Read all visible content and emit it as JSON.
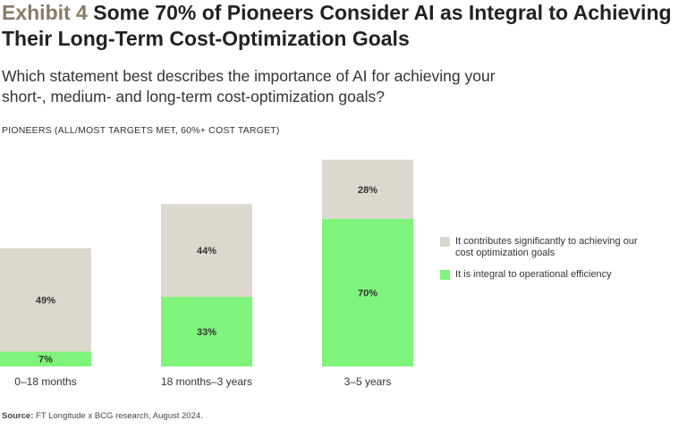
{
  "header": {
    "exhibit": "Exhibit 4",
    "title": "Some 70% of Pioneers Consider AI as Integral to Achieving Their Long-Term Cost-Optimization Goals",
    "question": "Which statement best describes the importance of AI for achieving your short-, medium- and long-term cost-optimization goals?",
    "group_label": "PIONEERS (ALL/MOST TARGETS MET, 60%+ COST TARGET)"
  },
  "legend": {
    "items": [
      {
        "label": "It contributes significantly to achieving our cost optimization goals",
        "color": "#ddd8cd"
      },
      {
        "label": "It is integral to operational efficiency",
        "color": "#7ff47a"
      }
    ]
  },
  "source": {
    "prefix": "Source:",
    "text": "FT Longitude x BCG research, August 2024."
  },
  "chart_data": {
    "type": "bar",
    "stacked": true,
    "categories": [
      "0–18 months",
      "18 months–3 years",
      "3–5 years"
    ],
    "series": [
      {
        "name": "It is integral to operational efficiency",
        "values": [
          7,
          33,
          70
        ],
        "labels": [
          "7%",
          "33%",
          "70%"
        ],
        "color": "#7ff47a"
      },
      {
        "name": "It contributes significantly to achieving our cost optimization goals",
        "values": [
          49,
          44,
          28
        ],
        "labels": [
          "49%",
          "44%",
          "28%"
        ],
        "color": "#ddd8cd"
      }
    ],
    "ylim": [
      0,
      100
    ],
    "grid": false,
    "legend_position": "right"
  }
}
